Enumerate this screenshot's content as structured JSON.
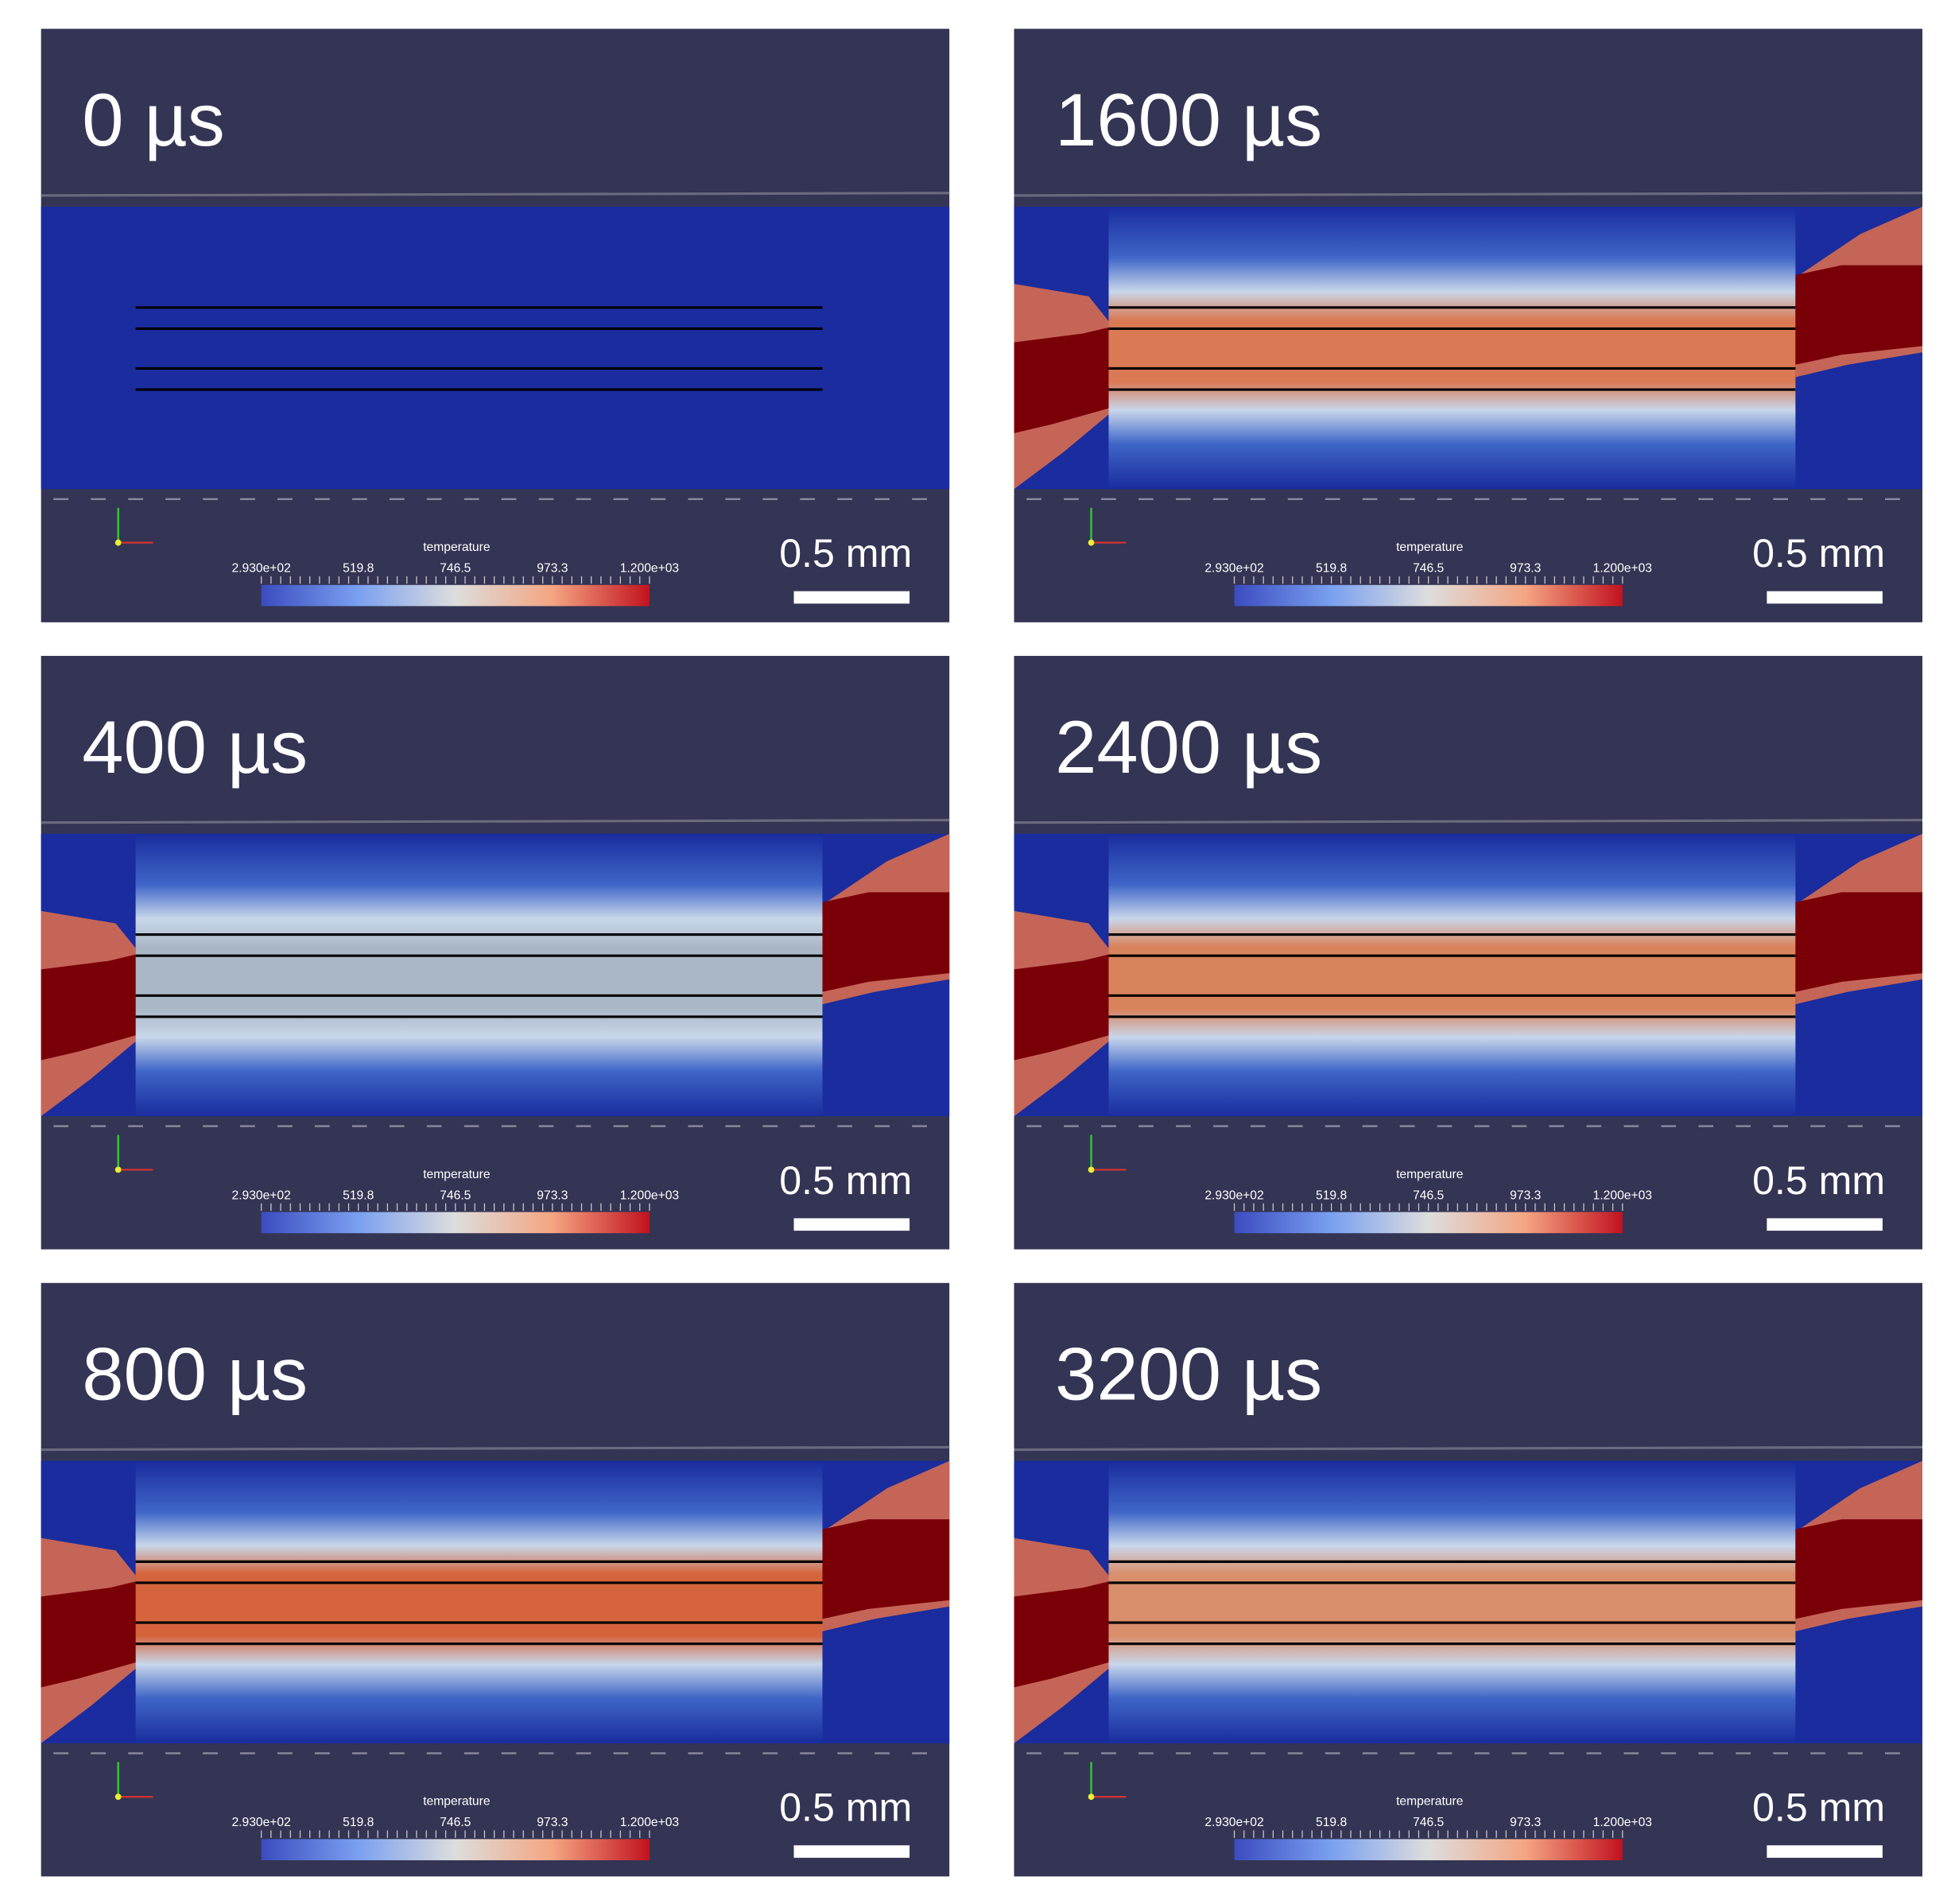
{
  "panels": [
    {
      "label": "0 µs"
    },
    {
      "label": "1600 µs"
    },
    {
      "label": "400 µs"
    },
    {
      "label": "2400 µs"
    },
    {
      "label": "800 µs"
    },
    {
      "label": "3200 µs"
    }
  ],
  "colorbar": {
    "title": "temperature",
    "ticks": [
      "2.930e+02",
      "519.8",
      "746.5",
      "973.3",
      "1.200e+03"
    ]
  },
  "scale_bar": "0.5 mm"
}
